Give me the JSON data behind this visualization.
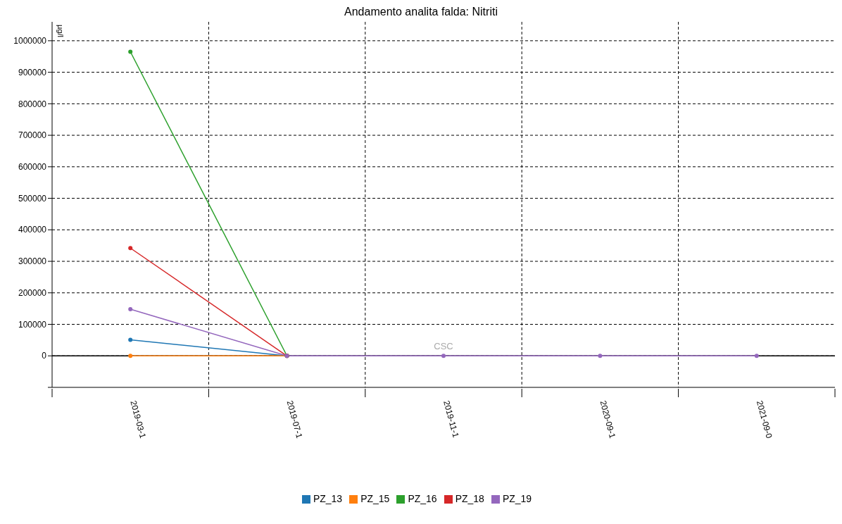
{
  "chart_data": {
    "type": "line",
    "title": "Andamento analita falda: Nitriti",
    "ylabel": "µg/l",
    "categories": [
      "2019-03-1",
      "2019-07-1",
      "2019-11-1",
      "2020-09-1",
      "2021-09-0"
    ],
    "series": [
      {
        "name": "PZ_13",
        "color": "#1f77b4",
        "values": [
          51000,
          0,
          null,
          null,
          null
        ]
      },
      {
        "name": "PZ_15",
        "color": "#ff7f0e",
        "values": [
          0,
          0,
          null,
          null,
          null
        ]
      },
      {
        "name": "PZ_16",
        "color": "#2ca02c",
        "values": [
          965000,
          0,
          null,
          null,
          null
        ]
      },
      {
        "name": "PZ_18",
        "color": "#d62728",
        "values": [
          342000,
          0,
          null,
          null,
          null
        ]
      },
      {
        "name": "PZ_19",
        "color": "#9467bd",
        "values": [
          148000,
          0,
          0,
          0,
          0
        ]
      }
    ],
    "ylim": [
      -100000,
      1060000
    ],
    "yticks": [
      {
        "value": -100000,
        "label": null
      },
      0,
      100000,
      200000,
      300000,
      400000,
      500000,
      600000,
      700000,
      800000,
      900000,
      1000000
    ],
    "ref_lines": [
      {
        "axis": "y",
        "value": 0,
        "label": "CSC",
        "color": "#000000"
      }
    ],
    "grid": true,
    "legend": "bottom",
    "marker": "circle",
    "line_style": "solid"
  }
}
